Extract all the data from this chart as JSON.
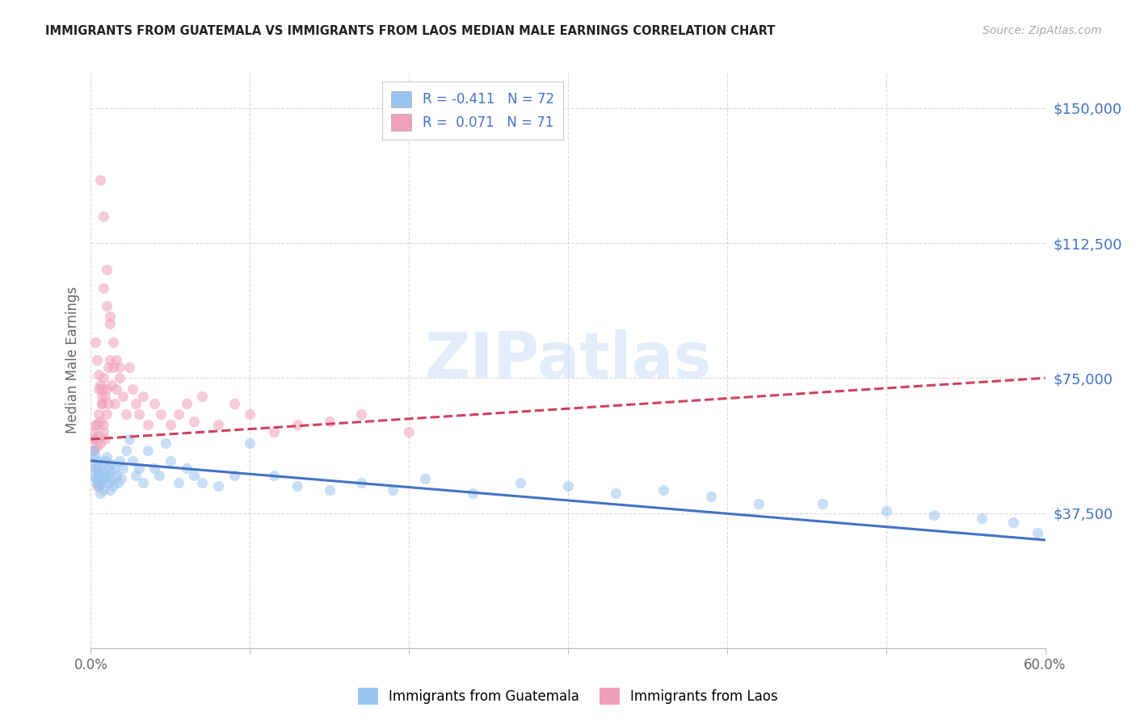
{
  "title": "IMMIGRANTS FROM GUATEMALA VS IMMIGRANTS FROM LAOS MEDIAN MALE EARNINGS CORRELATION CHART",
  "source": "Source: ZipAtlas.com",
  "ylabel": "Median Male Earnings",
  "xlim": [
    0.0,
    0.6
  ],
  "ylim": [
    0,
    160000
  ],
  "ytick_vals": [
    0,
    37500,
    75000,
    112500,
    150000
  ],
  "ytick_labels": [
    "",
    "$37,500",
    "$75,000",
    "$112,500",
    "$150,000"
  ],
  "xtick_vals": [
    0.0,
    0.1,
    0.2,
    0.3,
    0.4,
    0.5,
    0.6
  ],
  "xtick_labels": [
    "0.0%",
    "",
    "",
    "",
    "",
    "",
    "60.0%"
  ],
  "legend_r1_text": "R = -0.411   N = 72",
  "legend_r2_text": "R =  0.071   N = 71",
  "color_guatemala": "#99c4f0",
  "color_laos": "#f0a0b8",
  "color_trendline_guatemala": "#4472c4",
  "color_trendline_laos": "#d04060",
  "color_ytick": "#4472c4",
  "scatter_alpha": 0.55,
  "scatter_size": 90,
  "watermark_text": "ZIPatlas",
  "guatemala_x": [
    0.001,
    0.002,
    0.002,
    0.003,
    0.003,
    0.003,
    0.004,
    0.004,
    0.004,
    0.005,
    0.005,
    0.005,
    0.006,
    0.006,
    0.007,
    0.007,
    0.008,
    0.008,
    0.009,
    0.009,
    0.01,
    0.01,
    0.011,
    0.011,
    0.012,
    0.012,
    0.013,
    0.013,
    0.014,
    0.015,
    0.016,
    0.017,
    0.018,
    0.019,
    0.02,
    0.022,
    0.024,
    0.026,
    0.028,
    0.03,
    0.033,
    0.036,
    0.04,
    0.043,
    0.047,
    0.05,
    0.055,
    0.06,
    0.065,
    0.07,
    0.08,
    0.09,
    0.1,
    0.115,
    0.13,
    0.15,
    0.17,
    0.19,
    0.21,
    0.24,
    0.27,
    0.3,
    0.33,
    0.36,
    0.39,
    0.42,
    0.46,
    0.5,
    0.53,
    0.56,
    0.58,
    0.595
  ],
  "guatemala_y": [
    52000,
    55000,
    48000,
    50000,
    47000,
    53000,
    46000,
    49000,
    52000,
    45000,
    50000,
    47000,
    43000,
    48000,
    46000,
    51000,
    44000,
    49000,
    47000,
    52000,
    53000,
    48000,
    46000,
    50000,
    44000,
    49000,
    47000,
    51000,
    45000,
    50000,
    48000,
    46000,
    52000,
    47000,
    50000,
    55000,
    58000,
    52000,
    48000,
    50000,
    46000,
    55000,
    50000,
    48000,
    57000,
    52000,
    46000,
    50000,
    48000,
    46000,
    45000,
    48000,
    57000,
    48000,
    45000,
    44000,
    46000,
    44000,
    47000,
    43000,
    46000,
    45000,
    43000,
    44000,
    42000,
    40000,
    40000,
    38000,
    37000,
    36000,
    35000,
    32000
  ],
  "laos_x": [
    0.001,
    0.002,
    0.002,
    0.003,
    0.003,
    0.004,
    0.004,
    0.005,
    0.005,
    0.006,
    0.006,
    0.007,
    0.007,
    0.008,
    0.008,
    0.009,
    0.009,
    0.01,
    0.01,
    0.011,
    0.011,
    0.012,
    0.013,
    0.014,
    0.015,
    0.016,
    0.018,
    0.02,
    0.022,
    0.024,
    0.026,
    0.028,
    0.03,
    0.033,
    0.036,
    0.04,
    0.044,
    0.05,
    0.055,
    0.06,
    0.065,
    0.07,
    0.08,
    0.09,
    0.1,
    0.115,
    0.13,
    0.15,
    0.17,
    0.2,
    0.008,
    0.01,
    0.012,
    0.014,
    0.016,
    0.018,
    0.006,
    0.008,
    0.01,
    0.012,
    0.005,
    0.007,
    0.003,
    0.004,
    0.005,
    0.006,
    0.007,
    0.008,
    0.002,
    0.003,
    0.004
  ],
  "laos_y": [
    58000,
    60000,
    55000,
    62000,
    58000,
    56000,
    62000,
    59000,
    65000,
    57000,
    63000,
    72000,
    68000,
    60000,
    75000,
    58000,
    70000,
    65000,
    72000,
    68000,
    78000,
    80000,
    73000,
    78000,
    68000,
    72000,
    75000,
    70000,
    65000,
    78000,
    72000,
    68000,
    65000,
    70000,
    62000,
    68000,
    65000,
    62000,
    65000,
    68000,
    63000,
    70000,
    62000,
    68000,
    65000,
    60000,
    62000,
    63000,
    65000,
    60000,
    100000,
    95000,
    90000,
    85000,
    80000,
    78000,
    130000,
    120000,
    105000,
    92000,
    72000,
    70000,
    85000,
    80000,
    76000,
    73000,
    68000,
    62000,
    55000,
    50000,
    45000
  ]
}
